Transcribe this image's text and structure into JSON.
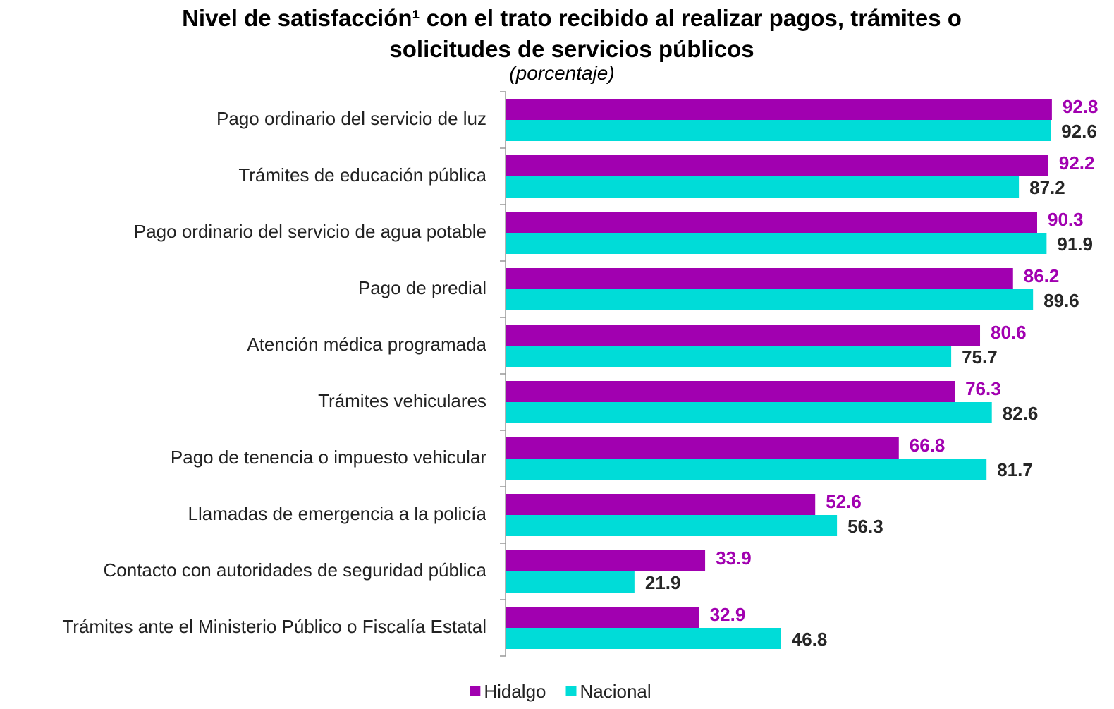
{
  "chart_data": {
    "type": "bar",
    "orientation": "horizontal",
    "title": "Nivel de satisfacción¹ con el trato recibido al realizar pagos, trámites o solicitudes de servicios públicos",
    "subtitle": "(porcentaje)",
    "categories": [
      "Pago ordinario del servicio de luz",
      "Trámites de educación pública",
      "Pago ordinario del servicio de agua potable",
      "Pago de predial",
      "Atención médica programada",
      "Trámites vehiculares",
      "Pago de tenencia o impuesto vehicular",
      "Llamadas de emergencia a la policía",
      "Contacto con autoridades de seguridad pública",
      "Trámites ante el Ministerio Público o Fiscalía Estatal"
    ],
    "series": [
      {
        "name": "Hidalgo",
        "color": "#a100b0",
        "label_color": "#a100b0",
        "values": [
          92.8,
          92.2,
          90.3,
          86.2,
          80.6,
          76.3,
          66.8,
          52.6,
          33.9,
          32.9
        ]
      },
      {
        "name": "Nacional",
        "color": "#00dcd8",
        "label_color": "#262626",
        "values": [
          92.6,
          87.2,
          91.9,
          89.6,
          75.7,
          82.6,
          81.7,
          56.3,
          21.9,
          46.8
        ]
      }
    ],
    "xlim": [
      0,
      100
    ],
    "legend": "bottom"
  }
}
